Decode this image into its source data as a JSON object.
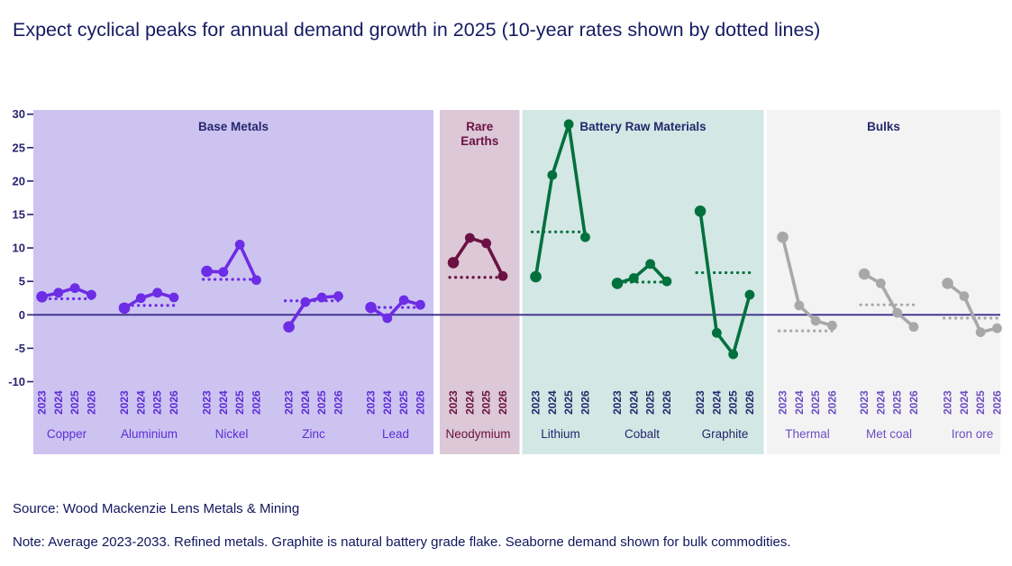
{
  "title": "Expect cyclical peaks for annual demand growth in 2025 (10-year rates shown by dotted lines)",
  "source": "Source: Wood Mackenzie Lens Metals & Mining",
  "note": "Note: Average 2023-2033. Refined metals. Graphite is natural battery grade flake. Seaborne demand shown for bulk commodities.",
  "colors": {
    "title_text": "#151b63",
    "axis_text": "#2a2470",
    "zero_line": "#3b2d8c",
    "background": "#ffffff"
  },
  "chart_data": {
    "type": "line",
    "title": "Expect cyclical peaks for annual demand growth in 2025",
    "subtitle": "10-year rates shown by dotted lines",
    "x_categories": [
      "2023",
      "2024",
      "2025",
      "2026"
    ],
    "ylabel": "",
    "ylim": [
      -10,
      30
    ],
    "ytick_step": 5,
    "grid": false,
    "legend_position": "none",
    "sections": [
      {
        "label": "Base Metals",
        "bg_color": "#cdc3f1",
        "line_color": "#6d2ce5",
        "text_color": "#5c2dd5",
        "series": [
          {
            "name": "Copper",
            "values": [
              2.7,
              3.3,
              4.0,
              3.0
            ],
            "avg_10yr": 2.4
          },
          {
            "name": "Aluminium",
            "values": [
              1.0,
              2.5,
              3.3,
              2.6
            ],
            "avg_10yr": 1.4
          },
          {
            "name": "Nickel",
            "values": [
              6.5,
              6.4,
              10.5,
              5.2
            ],
            "avg_10yr": 5.3
          },
          {
            "name": "Zinc",
            "values": [
              -1.8,
              1.9,
              2.6,
              2.8
            ],
            "avg_10yr": 2.1
          },
          {
            "name": "Lead",
            "values": [
              1.1,
              -0.5,
              2.2,
              1.5
            ],
            "avg_10yr": 1.1
          }
        ]
      },
      {
        "label": "Rare Earths",
        "bg_color": "#dcc8d6",
        "line_color": "#6b1143",
        "text_color": "#6b1143",
        "series": [
          {
            "name": "Neodymium",
            "values": [
              7.8,
              11.5,
              10.7,
              5.8
            ],
            "avg_10yr": 5.6
          }
        ]
      },
      {
        "label": "Battery Raw Materials",
        "bg_color": "#d3e7e4",
        "line_color": "#00713d",
        "text_color": "#25276d",
        "series": [
          {
            "name": "Lithium",
            "values": [
              5.7,
              20.9,
              28.5,
              11.6
            ],
            "avg_10yr": 12.4
          },
          {
            "name": "Cobalt",
            "values": [
              4.7,
              5.5,
              7.6,
              5.0
            ],
            "avg_10yr": 4.9
          },
          {
            "name": "Graphite",
            "values": [
              15.5,
              -2.7,
              -5.9,
              3.0
            ],
            "avg_10yr": 6.3
          }
        ]
      },
      {
        "label": "Bulks",
        "bg_color": "#f4f3f4",
        "line_color": "#a8a8aa",
        "text_color": "#6a4fc2",
        "series": [
          {
            "name": "Thermal",
            "values": [
              11.6,
              1.4,
              -0.9,
              -1.6
            ],
            "avg_10yr": -2.4
          },
          {
            "name": "Met coal",
            "values": [
              6.1,
              4.7,
              0.3,
              -1.8
            ],
            "avg_10yr": 1.5
          },
          {
            "name": "Iron ore",
            "values": [
              4.7,
              2.8,
              -2.6,
              -2.0
            ],
            "avg_10yr": -0.5
          }
        ]
      }
    ]
  }
}
